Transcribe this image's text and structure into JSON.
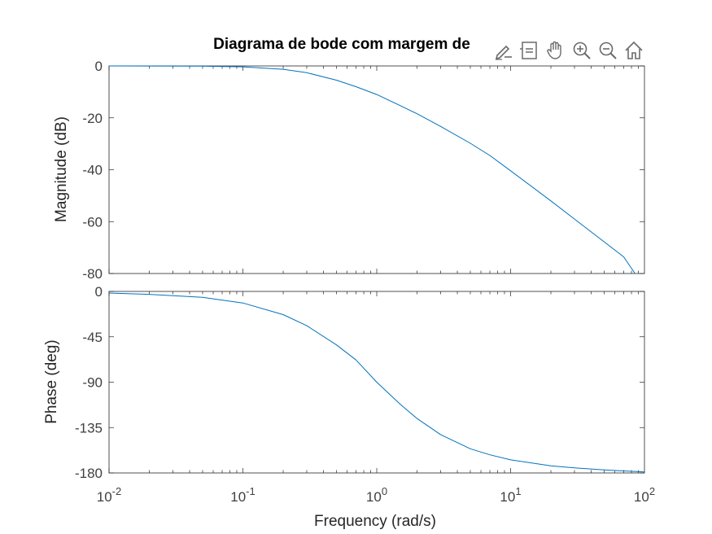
{
  "toolbar": {
    "icons": [
      "brush-edit-icon",
      "data-tips-icon",
      "pan-hand-icon",
      "zoom-in-icon",
      "zoom-out-icon",
      "restore-home-icon"
    ]
  },
  "chart_data": [
    {
      "type": "line",
      "title": "Diagrama de bode com margem de",
      "ylabel": "Magnitude (dB)",
      "xlabel": "",
      "xscale": "log",
      "xlim": [
        0.01,
        100
      ],
      "ylim": [
        -80,
        0
      ],
      "yticks": [
        0,
        -20,
        -40,
        -60,
        -80
      ],
      "ytick_labels": [
        "0",
        "-20",
        "-40",
        "-60",
        "-80"
      ],
      "grid": false,
      "line_color": "#0072BD",
      "series": [
        {
          "x": [
            0.01,
            0.02,
            0.05,
            0.1,
            0.2,
            0.3,
            0.5,
            0.7,
            1,
            1.5,
            2,
            3,
            5,
            7,
            10,
            20,
            30,
            50,
            70,
            85
          ],
          "y": [
            0,
            -0.02,
            -0.09,
            -0.34,
            -1.3,
            -2.6,
            -5.5,
            -8.0,
            -11.0,
            -15.3,
            -18.4,
            -23.3,
            -29.8,
            -34.5,
            -40.4,
            -52.0,
            -59.0,
            -67.8,
            -73.6,
            -80.0
          ]
        }
      ]
    },
    {
      "type": "line",
      "title": "",
      "ylabel": "Phase (deg)",
      "xlabel": "Frequency  (rad/s)",
      "xscale": "log",
      "xlim": [
        0.01,
        100
      ],
      "ylim": [
        -180,
        0
      ],
      "yticks": [
        0,
        -45,
        -90,
        -135,
        -180
      ],
      "ytick_labels": [
        "0",
        "-45",
        "-90",
        "-135",
        "-180"
      ],
      "xticks": [
        0.01,
        0.1,
        1,
        10,
        100
      ],
      "xtick_labels": [
        {
          "base": "10",
          "exp": "-2"
        },
        {
          "base": "10",
          "exp": "-1"
        },
        {
          "base": "10",
          "exp": "0"
        },
        {
          "base": "10",
          "exp": "1"
        },
        {
          "base": "10",
          "exp": "2"
        }
      ],
      "grid": false,
      "line_color": "#0072BD",
      "series": [
        {
          "x": [
            0.01,
            0.02,
            0.05,
            0.1,
            0.2,
            0.3,
            0.5,
            0.7,
            1,
            1.5,
            2,
            3,
            5,
            7,
            10,
            20,
            30,
            50,
            70,
            100
          ],
          "y": [
            -1.6,
            -2.9,
            -5.9,
            -11.5,
            -23,
            -34,
            -53,
            -68,
            -90,
            -112,
            -126,
            -142,
            -156,
            -162,
            -167,
            -173,
            -175,
            -177,
            -178,
            -179
          ]
        }
      ]
    }
  ]
}
